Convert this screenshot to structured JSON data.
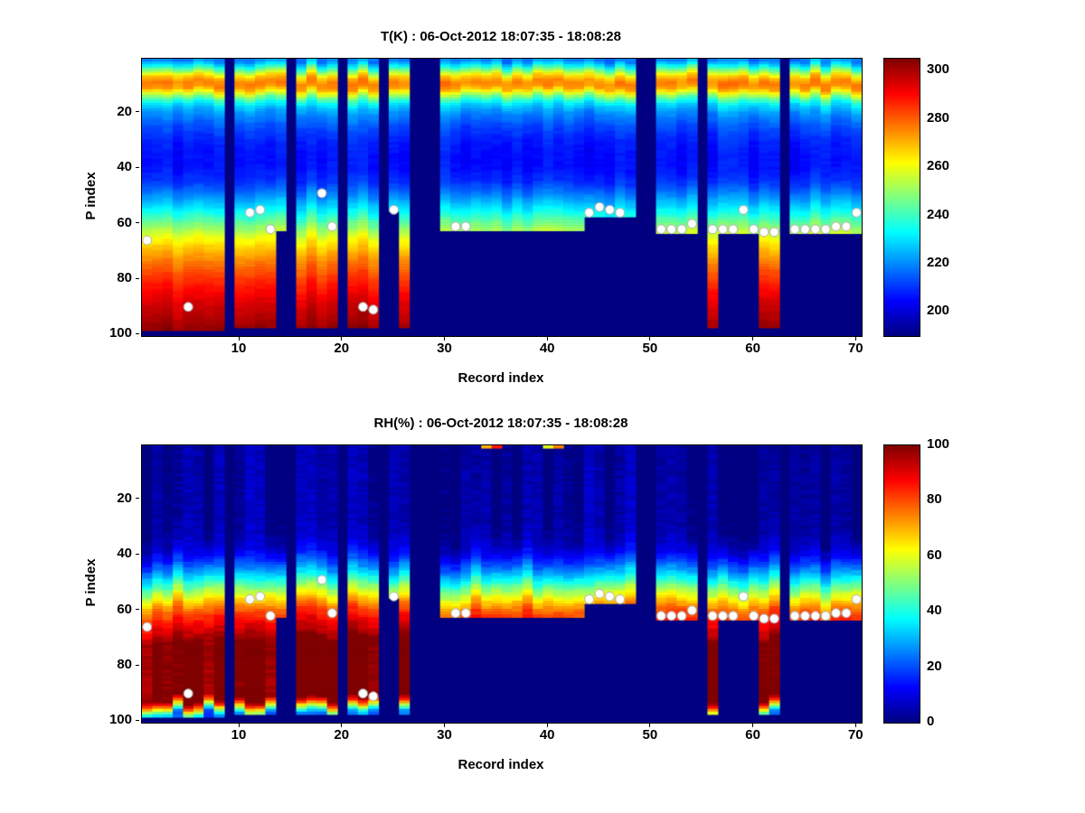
{
  "figure": {
    "background": "#ffffff"
  },
  "marker": {
    "color": "#ffffff",
    "edge": "#aaaaaa",
    "radius": 5
  },
  "chart_data": [
    {
      "type": "heatmap",
      "title": "T(K) : 06-Oct-2012 18:07:35 - 18:08:28",
      "xlabel": "Record index",
      "ylabel": "P index",
      "x_ticks": [
        10,
        20,
        30,
        40,
        50,
        60,
        70
      ],
      "y_ticks": [
        20,
        40,
        60,
        80,
        100
      ],
      "records": 70,
      "levels": 100,
      "colormap": "jet",
      "colorbar": {
        "min": 190,
        "max": 305,
        "ticks": [
          300,
          280,
          260,
          240,
          220,
          200
        ]
      },
      "profile": {
        "p": [
          1,
          3,
          5,
          7,
          9,
          11,
          13,
          15,
          17,
          20,
          25,
          30,
          35,
          40,
          45,
          50,
          55,
          60,
          65,
          70,
          75,
          80,
          85,
          90,
          95,
          98
        ],
        "v": [
          218,
          232,
          250,
          268,
          276,
          274,
          258,
          242,
          230,
          221,
          213,
          208,
          206,
          206,
          210,
          220,
          232,
          246,
          260,
          270,
          278,
          285,
          291,
          296,
          300,
          303
        ]
      },
      "column_cut": [
        98,
        98,
        98,
        98,
        98,
        98,
        98,
        98,
        0,
        97,
        97,
        97,
        97,
        62,
        0,
        97,
        97,
        97,
        97,
        0,
        97,
        97,
        97,
        0,
        55,
        97,
        0,
        0,
        0,
        62,
        62,
        62,
        62,
        62,
        62,
        62,
        62,
        62,
        62,
        62,
        62,
        62,
        62,
        57,
        57,
        57,
        57,
        57,
        0,
        0,
        63,
        63,
        63,
        63,
        0,
        97,
        63,
        63,
        63,
        63,
        97,
        97,
        0,
        63,
        63,
        63,
        63,
        63,
        63,
        63
      ],
      "noise": {
        "seed": 11,
        "col_amp": 3,
        "vshift_amp": 1.2,
        "cell_amp": 1.2
      },
      "dots": [
        [
          1,
          66
        ],
        [
          5,
          90
        ],
        [
          11,
          56
        ],
        [
          12,
          55
        ],
        [
          13,
          62
        ],
        [
          18,
          49
        ],
        [
          19,
          61
        ],
        [
          22,
          90
        ],
        [
          23,
          91
        ],
        [
          25,
          55
        ],
        [
          31,
          61
        ],
        [
          32,
          61
        ],
        [
          44,
          56
        ],
        [
          45,
          54
        ],
        [
          46,
          55
        ],
        [
          47,
          56
        ],
        [
          51,
          62
        ],
        [
          52,
          62
        ],
        [
          53,
          62
        ],
        [
          54,
          60
        ],
        [
          56,
          62
        ],
        [
          57,
          62
        ],
        [
          58,
          62
        ],
        [
          59,
          55
        ],
        [
          60,
          62
        ],
        [
          61,
          63
        ],
        [
          62,
          63
        ],
        [
          64,
          62
        ],
        [
          65,
          62
        ],
        [
          66,
          62
        ],
        [
          67,
          62
        ],
        [
          68,
          61
        ],
        [
          69,
          61
        ],
        [
          70,
          56
        ]
      ]
    },
    {
      "type": "heatmap",
      "title": "RH(%) : 06-Oct-2012 18:07:35 - 18:08:28",
      "xlabel": "Record index",
      "ylabel": "P index",
      "x_ticks": [
        10,
        20,
        30,
        40,
        50,
        60,
        70
      ],
      "y_ticks": [
        20,
        40,
        60,
        80,
        100
      ],
      "records": 70,
      "levels": 100,
      "colormap": "jet",
      "colorbar": {
        "min": 0,
        "max": 100,
        "ticks": [
          100,
          80,
          60,
          40,
          20,
          0
        ]
      },
      "profile": {
        "p": [
          1,
          30,
          36,
          40,
          44,
          48,
          52,
          56,
          60,
          64,
          68,
          71,
          92,
          94,
          96,
          98
        ],
        "v": [
          2,
          3,
          6,
          12,
          22,
          35,
          50,
          65,
          78,
          86,
          92,
          100,
          100,
          78,
          48,
          22
        ]
      },
      "column_cut": [
        98,
        98,
        98,
        98,
        98,
        98,
        98,
        98,
        0,
        97,
        97,
        97,
        97,
        62,
        0,
        97,
        97,
        97,
        97,
        0,
        97,
        97,
        97,
        0,
        55,
        97,
        0,
        0,
        0,
        62,
        62,
        62,
        62,
        62,
        62,
        62,
        62,
        62,
        62,
        62,
        62,
        62,
        62,
        57,
        57,
        57,
        57,
        57,
        0,
        0,
        63,
        63,
        63,
        63,
        0,
        97,
        63,
        63,
        63,
        63,
        97,
        97,
        0,
        63,
        63,
        63,
        63,
        63,
        63,
        63
      ],
      "noise": {
        "seed": 23,
        "col_amp": 5,
        "vshift_amp": 2,
        "cell_amp": 2
      },
      "specks": [
        {
          "record": 34,
          "p": 1,
          "value": 70
        },
        {
          "record": 35,
          "p": 1,
          "value": 85
        },
        {
          "record": 40,
          "p": 1,
          "value": 60
        },
        {
          "record": 41,
          "p": 1,
          "value": 75
        }
      ],
      "dots": [
        [
          1,
          66
        ],
        [
          5,
          90
        ],
        [
          11,
          56
        ],
        [
          12,
          55
        ],
        [
          13,
          62
        ],
        [
          18,
          49
        ],
        [
          19,
          61
        ],
        [
          22,
          90
        ],
        [
          23,
          91
        ],
        [
          25,
          55
        ],
        [
          31,
          61
        ],
        [
          32,
          61
        ],
        [
          44,
          56
        ],
        [
          45,
          54
        ],
        [
          46,
          55
        ],
        [
          47,
          56
        ],
        [
          51,
          62
        ],
        [
          52,
          62
        ],
        [
          53,
          62
        ],
        [
          54,
          60
        ],
        [
          56,
          62
        ],
        [
          57,
          62
        ],
        [
          58,
          62
        ],
        [
          59,
          55
        ],
        [
          60,
          62
        ],
        [
          61,
          63
        ],
        [
          62,
          63
        ],
        [
          64,
          62
        ],
        [
          65,
          62
        ],
        [
          66,
          62
        ],
        [
          67,
          62
        ],
        [
          68,
          61
        ],
        [
          69,
          61
        ],
        [
          70,
          56
        ]
      ]
    }
  ]
}
